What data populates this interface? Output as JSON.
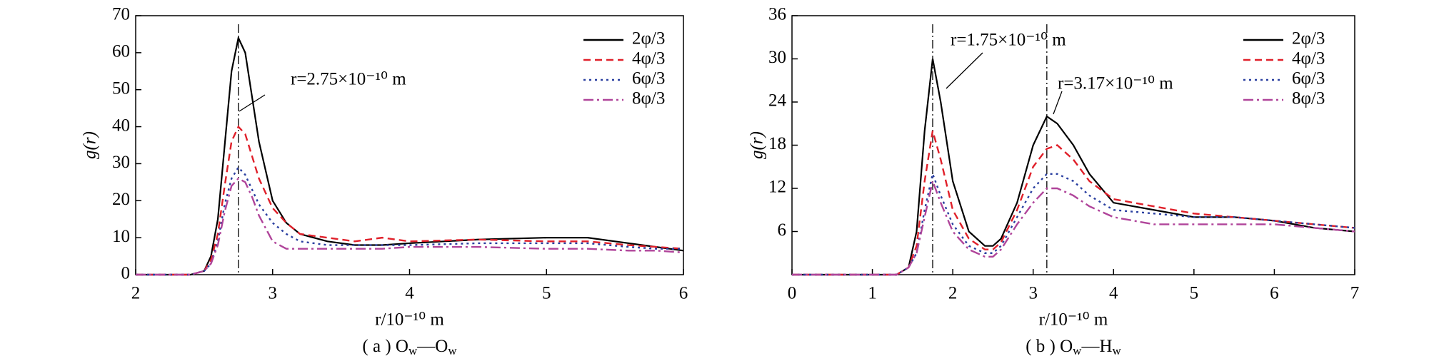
{
  "chart_data": [
    {
      "type": "line",
      "ylabel": "g(r)",
      "xlabel": "r/10⁻¹⁰ m",
      "caption": [
        "( a ) O",
        "w",
        "—O",
        "w"
      ],
      "xlim": [
        2,
        6
      ],
      "xticks": [
        2,
        3,
        4,
        5,
        6
      ],
      "ylim": [
        0,
        70
      ],
      "yticks": [
        0,
        10,
        20,
        30,
        40,
        50,
        60,
        70
      ],
      "legend": "upper right",
      "annotations": [
        {
          "text": "r=2.75×10⁻¹⁰ m",
          "x": 2.75
        }
      ],
      "x": [
        2,
        2.4,
        2.5,
        2.55,
        2.6,
        2.65,
        2.7,
        2.75,
        2.8,
        2.85,
        2.9,
        3.0,
        3.1,
        3.2,
        3.4,
        3.6,
        3.8,
        4.0,
        4.5,
        5.0,
        5.3,
        5.6,
        5.8,
        6.0
      ],
      "series": [
        {
          "name": "2φ/3",
          "color": "#000000",
          "dash": "solid",
          "values": [
            0,
            0,
            1,
            5,
            15,
            35,
            55,
            64,
            60,
            48,
            36,
            20,
            14,
            11,
            9,
            8,
            8,
            8.5,
            9.5,
            10,
            10,
            8.5,
            7.5,
            6.5
          ]
        },
        {
          "name": "4φ/3",
          "color": "#e0202a",
          "dash": "dashed",
          "values": [
            0,
            0,
            1,
            4,
            11,
            24,
            36,
            40,
            38,
            32,
            26,
            18,
            14,
            11,
            10,
            9,
            10,
            9,
            9.5,
            9,
            9,
            8,
            7.5,
            7
          ]
        },
        {
          "name": "6φ/3",
          "color": "#2a3fa0",
          "dash": "dotted",
          "values": [
            0,
            0,
            1,
            3,
            9,
            19,
            26,
            29,
            27,
            23,
            19,
            14,
            11,
            9,
            8,
            8,
            8,
            8,
            8.5,
            8.5,
            8.5,
            7.5,
            7,
            7
          ]
        },
        {
          "name": "8φ/3",
          "color": "#b0449a",
          "dash": "dashdot",
          "values": [
            0,
            0,
            1,
            3,
            8,
            17,
            24,
            26,
            25,
            21,
            16,
            9,
            7,
            7,
            7,
            7,
            7,
            7.5,
            7.5,
            7,
            7,
            6.5,
            6.5,
            6
          ]
        }
      ]
    },
    {
      "type": "line",
      "ylabel": "g(r)",
      "xlabel": "r/10⁻¹⁰ m",
      "caption": [
        "( b ) O",
        "w",
        "—H",
        "w"
      ],
      "xlim": [
        0,
        7
      ],
      "xticks": [
        0,
        1,
        2,
        3,
        4,
        5,
        6,
        7
      ],
      "ylim": [
        0,
        36
      ],
      "yticks": [
        6,
        12,
        18,
        24,
        30,
        36
      ],
      "legend": "upper right",
      "annotations": [
        {
          "text": "r=1.75×10⁻¹⁰ m",
          "x": 1.75
        },
        {
          "text": "r=3.17×10⁻¹⁰ m",
          "x": 3.17
        }
      ],
      "x": [
        0,
        1.3,
        1.45,
        1.55,
        1.65,
        1.75,
        1.85,
        2.0,
        2.2,
        2.4,
        2.5,
        2.6,
        2.8,
        3.0,
        3.17,
        3.3,
        3.5,
        3.7,
        4.0,
        4.5,
        5.0,
        5.5,
        6.0,
        6.5,
        7.0
      ],
      "series": [
        {
          "name": "2φ/3",
          "color": "#000000",
          "dash": "solid",
          "values": [
            0,
            0,
            1,
            6,
            20,
            30,
            24,
            13,
            6,
            4,
            4,
            5,
            10,
            18,
            22,
            21,
            18,
            14,
            10,
            9,
            8,
            8,
            7.5,
            6.5,
            6
          ]
        },
        {
          "name": "4φ/3",
          "color": "#e0202a",
          "dash": "dashed",
          "values": [
            0,
            0,
            1,
            4,
            13,
            20,
            16,
            9,
            5,
            3.5,
            3.5,
            4.5,
            9,
            15,
            17.5,
            18,
            16,
            13,
            10.5,
            9.5,
            8.5,
            8,
            7.5,
            7,
            6.5
          ]
        },
        {
          "name": "6φ/3",
          "color": "#2a3fa0",
          "dash": "dotted",
          "values": [
            0,
            0,
            1,
            3,
            9,
            14,
            11,
            7,
            4,
            3,
            3,
            4,
            8,
            12,
            14,
            14,
            13,
            11,
            9,
            8.5,
            8,
            8,
            7.5,
            7,
            6.5
          ]
        },
        {
          "name": "8φ/3",
          "color": "#b0449a",
          "dash": "dashdot",
          "values": [
            0,
            0,
            1,
            3,
            8,
            13,
            10,
            6,
            3.5,
            2.5,
            2.5,
            3.5,
            7,
            10,
            12,
            12,
            11,
            9.5,
            8,
            7,
            7,
            7,
            7,
            6.5,
            6
          ]
        }
      ]
    }
  ]
}
